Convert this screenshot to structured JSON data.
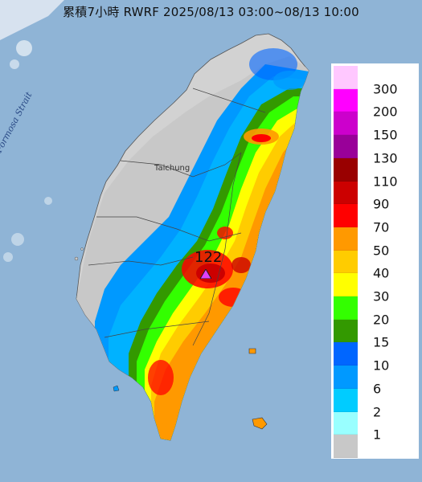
{
  "title": "累積7小時 RWRF 2025/08/13 03:00~08/13 10:00",
  "map": {
    "strait_label": "Formosa Strait",
    "city_label": "Taichung",
    "max_value": "122",
    "max_marker_color": "#e040fb",
    "ocean_color": "#8fb4d6",
    "land_color": "#d2d2d2"
  },
  "legend": {
    "unit_note": "",
    "levels": [
      {
        "label": "300",
        "color": "#ffc8ff"
      },
      {
        "label": "200",
        "color": "#ff00ff"
      },
      {
        "label": "150",
        "color": "#cc00cc"
      },
      {
        "label": "130",
        "color": "#990099"
      },
      {
        "label": "110",
        "color": "#990000"
      },
      {
        "label": "90",
        "color": "#cc0000"
      },
      {
        "label": "70",
        "color": "#ff0000"
      },
      {
        "label": "50",
        "color": "#ff9900"
      },
      {
        "label": "40",
        "color": "#ffcc00"
      },
      {
        "label": "30",
        "color": "#ffff00"
      },
      {
        "label": "20",
        "color": "#33ff00"
      },
      {
        "label": "15",
        "color": "#339900"
      },
      {
        "label": "10",
        "color": "#0066ff"
      },
      {
        "label": "6",
        "color": "#0099ff"
      },
      {
        "label": "2",
        "color": "#00ccff"
      },
      {
        "label": "1",
        "color": "#99ffff"
      },
      {
        "label": "",
        "color": "#c8c8c8"
      }
    ]
  }
}
